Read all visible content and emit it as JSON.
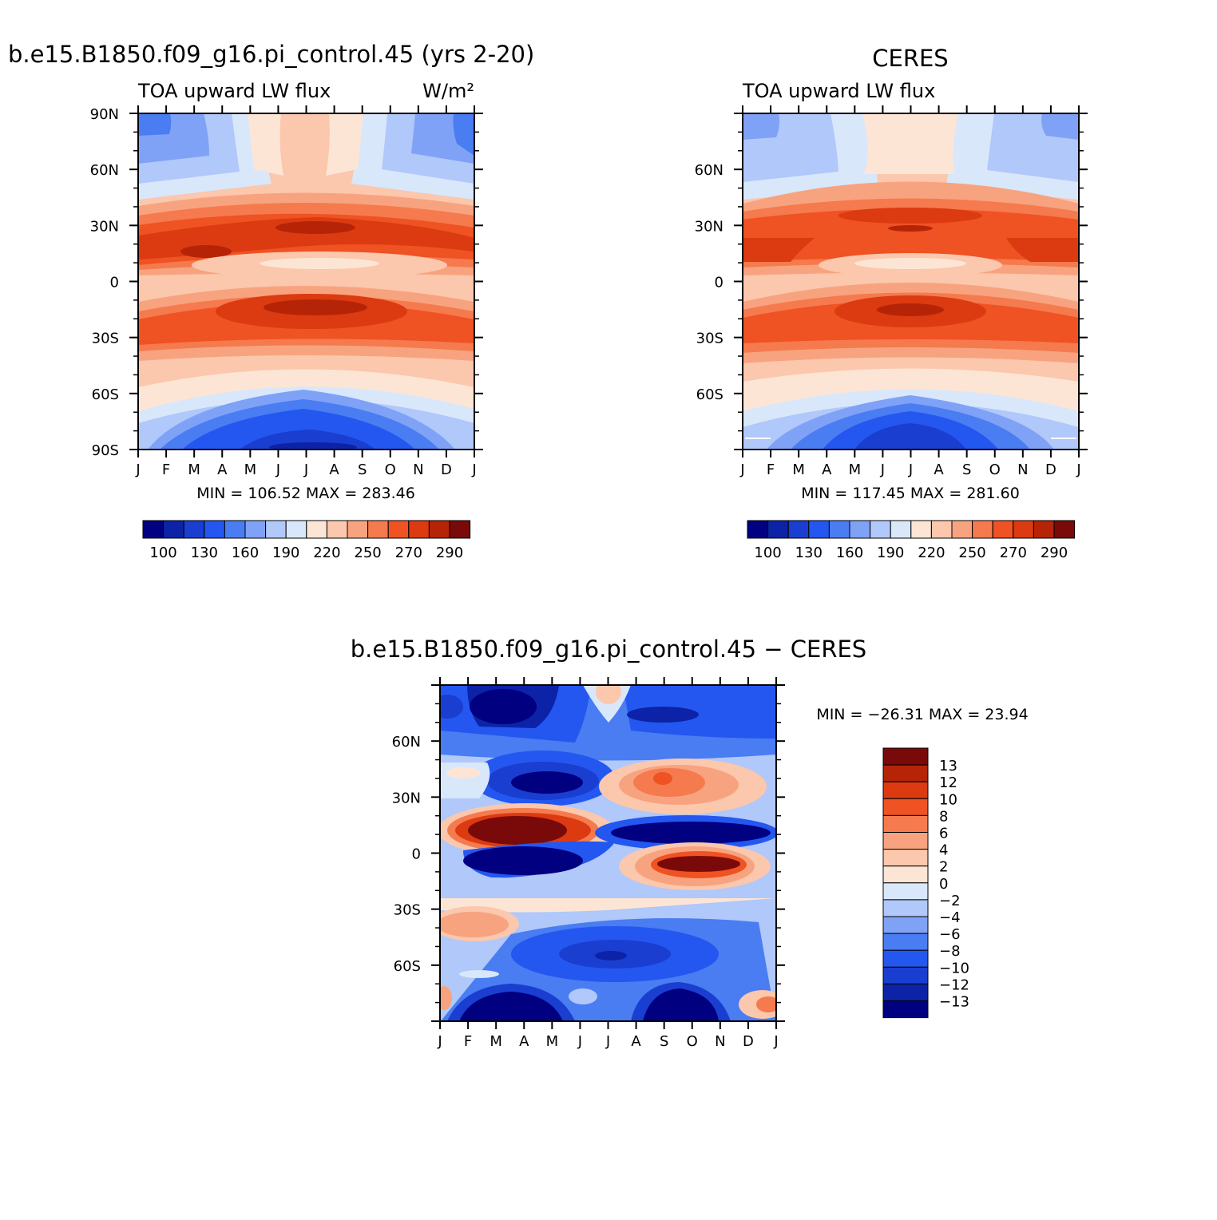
{
  "panels": [
    {
      "title": "b.e15.B1850.f09_g16.pi_control.45 (yrs 2-20)",
      "left_string": "TOA upward LW flux",
      "right_string": "W/m²",
      "minmax": "MIN = 106.52 MAX = 283.46",
      "y_tick_labels": [
        "90N",
        "60N",
        "30N",
        "0",
        "30S",
        "60S",
        "90S"
      ]
    },
    {
      "title": "CERES",
      "left_string": "TOA upward LW flux",
      "right_string": "",
      "minmax": "MIN = 117.45 MAX = 281.60",
      "y_tick_labels": [
        "",
        "60N",
        "30N",
        "0",
        "30S",
        "60S",
        ""
      ]
    },
    {
      "title": "b.e15.B1850.f09_g16.pi_control.45 − CERES",
      "left_string": "",
      "right_string": "",
      "minmax": "MIN = −26.31 MAX =  23.94",
      "y_tick_labels": [
        "",
        "60N",
        "30N",
        "0",
        "30S",
        "60S",
        ""
      ]
    }
  ],
  "x_tick_labels": [
    "J",
    "F",
    "M",
    "A",
    "M",
    "J",
    "J",
    "A",
    "S",
    "O",
    "N",
    "D",
    "J"
  ],
  "abs_colorbar": {
    "labels": [
      "100",
      "130",
      "160",
      "190",
      "220",
      "250",
      "270",
      "290"
    ],
    "colors": [
      "#000080",
      "#0c23a8",
      "#1a3ed0",
      "#2457f0",
      "#4a7cf2",
      "#7fa2f6",
      "#b0c8fa",
      "#d9e7fb",
      "#fde5d5",
      "#fbc7ad",
      "#f8a37f",
      "#f57a4d",
      "#ef5223",
      "#dc3a10",
      "#b62408",
      "#7a0a0a"
    ]
  },
  "diff_colorbar": {
    "labels": [
      "13",
      "12",
      "10",
      "8",
      "6",
      "4",
      "2",
      "0",
      "−2",
      "−4",
      "−6",
      "−8",
      "−10",
      "−12",
      "−13"
    ],
    "colors_top_to_bottom": [
      "#7a0a0a",
      "#b62408",
      "#dc3a10",
      "#ef5223",
      "#f57a4d",
      "#f8a37f",
      "#fbc7ad",
      "#fde5d5",
      "#d9e7fb",
      "#b0c8fa",
      "#7fa2f6",
      "#4a7cf2",
      "#2457f0",
      "#1a3ed0",
      "#0c23a8",
      "#000080"
    ]
  },
  "chart_data": [
    {
      "type": "heatmap",
      "title": "b.e15.B1850.f09_g16.pi_control.45 (yrs 2-20)",
      "variable": "TOA upward LW flux",
      "units": "W/m²",
      "x": [
        "J",
        "F",
        "M",
        "A",
        "M",
        "J",
        "J",
        "A",
        "S",
        "O",
        "N",
        "D",
        "J"
      ],
      "y": [
        -90,
        -60,
        -30,
        0,
        30,
        60,
        90
      ],
      "min": 106.52,
      "max": 283.46,
      "contour_levels": [
        100,
        115,
        130,
        145,
        160,
        175,
        190,
        205,
        220,
        235,
        250,
        260,
        270,
        280,
        290
      ],
      "features": [
        {
          "lat": 17,
          "month": 2.5,
          "value": 280
        },
        {
          "lat": -13,
          "month": 7,
          "value": 283
        },
        {
          "lat": 8,
          "month": 7,
          "value": 225
        },
        {
          "lat": 82,
          "month": 0,
          "value": 165
        },
        {
          "lat": -85,
          "month": 6.5,
          "value": 110
        }
      ]
    },
    {
      "type": "heatmap",
      "title": "CERES",
      "variable": "TOA upward LW flux",
      "x": [
        "J",
        "F",
        "M",
        "A",
        "M",
        "J",
        "J",
        "A",
        "S",
        "O",
        "N",
        "D",
        "J"
      ],
      "y": [
        -90,
        -60,
        -30,
        0,
        30,
        60,
        90
      ],
      "min": 117.45,
      "max": 281.6,
      "contour_levels": [
        100,
        115,
        130,
        145,
        160,
        175,
        190,
        205,
        220,
        235,
        250,
        260,
        270,
        280,
        290
      ],
      "features": [
        {
          "lat": 28,
          "month": 6.8,
          "value": 280
        },
        {
          "lat": -15,
          "month": 6.5,
          "value": 281
        },
        {
          "lat": 10,
          "month": 6.5,
          "value": 232
        },
        {
          "lat": 85,
          "month": 0,
          "value": 175
        },
        {
          "lat": -80,
          "month": 6.5,
          "value": 125
        }
      ]
    },
    {
      "type": "heatmap",
      "title": "b.e15.B1850.f09_g16.pi_control.45 − CERES",
      "x": [
        "J",
        "F",
        "M",
        "A",
        "M",
        "J",
        "J",
        "A",
        "S",
        "O",
        "N",
        "D",
        "J"
      ],
      "y": [
        -90,
        -60,
        -30,
        0,
        30,
        60,
        90
      ],
      "min": -26.31,
      "max": 23.94,
      "contour_levels": [
        -13,
        -12,
        -10,
        -8,
        -6,
        -4,
        -2,
        0,
        2,
        4,
        6,
        8,
        10,
        12,
        13
      ],
      "features": [
        {
          "lat": 10,
          "month": 3,
          "value": 24
        },
        {
          "lat": -5,
          "month": 3,
          "value": -20
        },
        {
          "lat": 9,
          "month": 9.5,
          "value": -20
        },
        {
          "lat": -6,
          "month": 9,
          "value": 22
        },
        {
          "lat": 38,
          "month": 3.5,
          "value": -16
        },
        {
          "lat": 37,
          "month": 8.3,
          "value": 8
        },
        {
          "lat": 78,
          "month": 2,
          "value": -18
        },
        {
          "lat": -83,
          "month": 2.8,
          "value": -20
        },
        {
          "lat": -83,
          "month": 9,
          "value": -20
        },
        {
          "lat": -37,
          "month": 0.5,
          "value": 5
        },
        {
          "lat": -55,
          "month": 6,
          "value": -12
        }
      ]
    }
  ]
}
